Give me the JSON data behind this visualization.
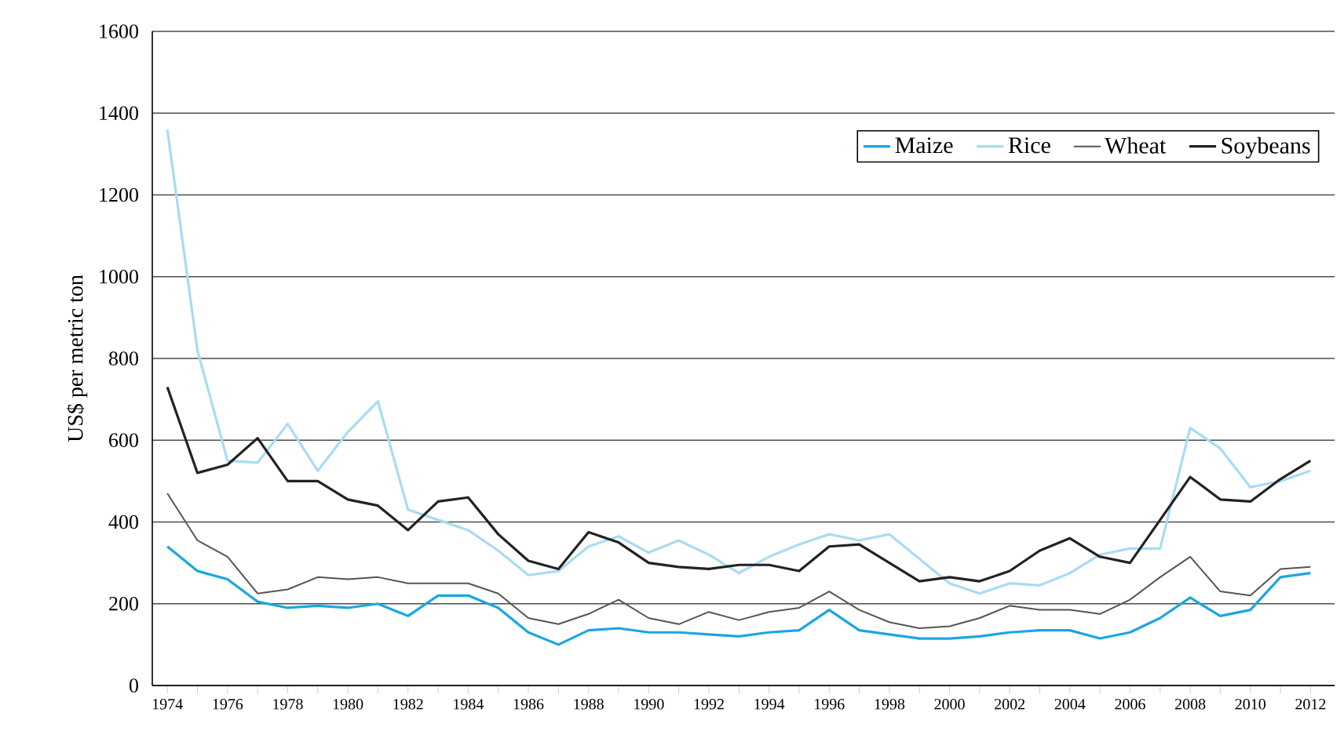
{
  "chart_data": {
    "type": "line",
    "ylabel": "US$ per metric ton",
    "x": [
      1974,
      1975,
      1976,
      1977,
      1978,
      1979,
      1980,
      1981,
      1982,
      1983,
      1984,
      1985,
      1986,
      1987,
      1988,
      1989,
      1990,
      1991,
      1992,
      1993,
      1994,
      1995,
      1996,
      1997,
      1998,
      1999,
      2000,
      2001,
      2002,
      2003,
      2004,
      2005,
      2006,
      2007,
      2008,
      2009,
      2010,
      2011,
      2012
    ],
    "series": [
      {
        "name": "Maize",
        "color": "#1aa7e0",
        "values": [
          340,
          280,
          260,
          205,
          190,
          195,
          190,
          200,
          170,
          220,
          220,
          190,
          130,
          100,
          135,
          140,
          130,
          130,
          125,
          120,
          130,
          135,
          185,
          135,
          125,
          115,
          115,
          120,
          130,
          135,
          135,
          115,
          130,
          165,
          215,
          170,
          185,
          265,
          275
        ]
      },
      {
        "name": "Rice",
        "color": "#a8dcf2",
        "values": [
          1360,
          820,
          550,
          545,
          640,
          525,
          620,
          695,
          430,
          405,
          380,
          330,
          270,
          280,
          340,
          365,
          325,
          355,
          320,
          275,
          315,
          345,
          370,
          355,
          370,
          310,
          250,
          225,
          250,
          245,
          275,
          320,
          335,
          335,
          630,
          580,
          485,
          500,
          525
        ]
      },
      {
        "name": "Wheat",
        "color": "#555555",
        "values": [
          470,
          355,
          315,
          225,
          235,
          265,
          260,
          265,
          250,
          250,
          250,
          225,
          165,
          150,
          175,
          210,
          165,
          150,
          180,
          160,
          180,
          190,
          230,
          185,
          155,
          140,
          145,
          165,
          195,
          185,
          185,
          175,
          210,
          265,
          315,
          230,
          220,
          285,
          290
        ]
      },
      {
        "name": "Soybeans",
        "color": "#222222",
        "values": [
          730,
          520,
          540,
          605,
          500,
          500,
          455,
          440,
          380,
          450,
          460,
          370,
          305,
          285,
          375,
          350,
          300,
          290,
          285,
          295,
          295,
          280,
          340,
          345,
          300,
          255,
          265,
          255,
          280,
          330,
          360,
          315,
          300,
          405,
          510,
          455,
          450,
          505,
          550
        ]
      }
    ],
    "xlim": [
      1973.5,
      2012.8
    ],
    "ylim": [
      0,
      1600
    ],
    "xticks": [
      1974,
      {
        "value": 1975,
        "label": null
      },
      1976,
      {
        "value": 1977,
        "label": null
      },
      1978,
      {
        "value": 1979,
        "label": null
      },
      1980,
      {
        "value": 1981,
        "label": null
      },
      1982,
      {
        "value": 1983,
        "label": null
      },
      1984,
      {
        "value": 1985,
        "label": null
      },
      1986,
      {
        "value": 1987,
        "label": null
      },
      1988,
      {
        "value": 1989,
        "label": null
      },
      1990,
      {
        "value": 1991,
        "label": null
      },
      1992,
      {
        "value": 1993,
        "label": null
      },
      1994,
      {
        "value": 1995,
        "label": null
      },
      1996,
      {
        "value": 1997,
        "label": null
      },
      1998,
      {
        "value": 1999,
        "label": null
      },
      2000,
      {
        "value": 2001,
        "label": null
      },
      2002,
      {
        "value": 2003,
        "label": null
      },
      2004,
      {
        "value": 2005,
        "label": null
      },
      2006,
      {
        "value": 2007,
        "label": null
      },
      2008,
      {
        "value": 2009,
        "label": null
      },
      2010,
      {
        "value": 2011,
        "label": null
      },
      2012
    ],
    "yticks": [
      0,
      200,
      400,
      600,
      800,
      1000,
      1200,
      1400,
      1600
    ],
    "grid": "y",
    "legend": "top right",
    "marker": "none",
    "line_style": "solid"
  }
}
